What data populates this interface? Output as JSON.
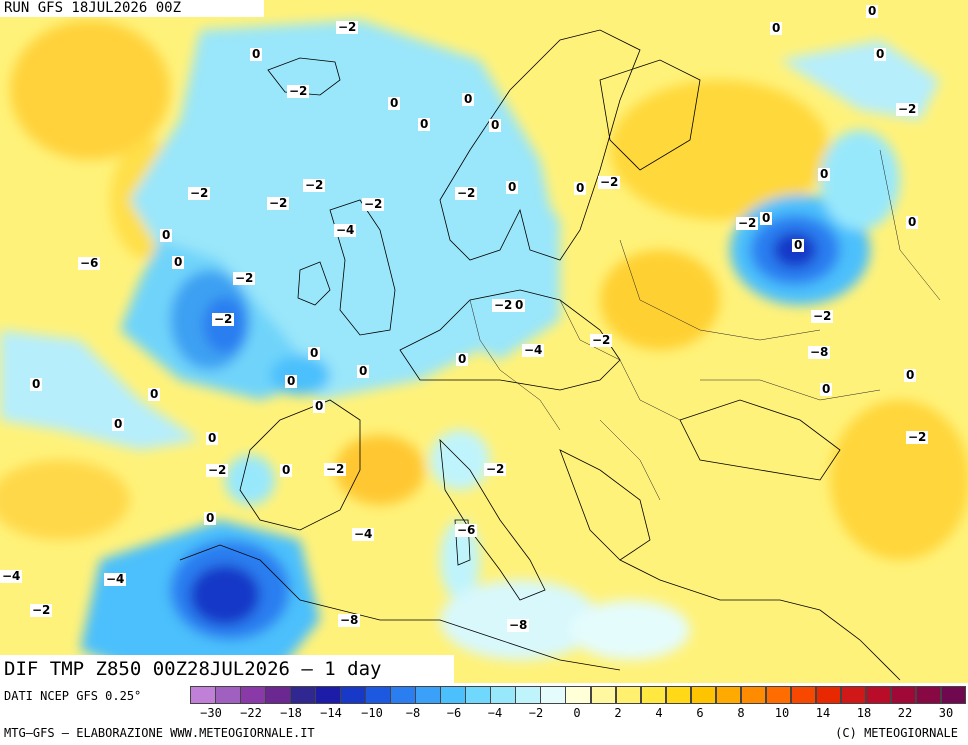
{
  "header": {
    "run_label": "RUN GFS 18JUL2026 00Z"
  },
  "map": {
    "caption": "DIF TMP Z850 00Z28JUL2026 — 1 day",
    "labels": [
      {
        "text": "−2",
        "at": "north atlantic near greenland"
      },
      {
        "text": "0",
        "at": "norwegian sea"
      },
      {
        "text": "−2",
        "at": "iceland"
      },
      {
        "text": "0",
        "at": "north of scandinavia"
      },
      {
        "text": "0",
        "at": "norway coast"
      },
      {
        "text": "0",
        "at": "barents sea"
      },
      {
        "text": "−2",
        "at": "kara sea"
      },
      {
        "text": "0",
        "at": "northern russia"
      },
      {
        "text": "0",
        "at": "arctic east"
      },
      {
        "text": "0",
        "at": "atlantic northwest"
      },
      {
        "text": "0",
        "at": "faroe islands"
      },
      {
        "text": "−2",
        "at": "north sea"
      },
      {
        "text": "−2",
        "at": "scotland"
      },
      {
        "text": "−2",
        "at": "southern norway"
      },
      {
        "text": "−2",
        "at": "atlantic west"
      },
      {
        "text": "−4",
        "at": "atlantic low"
      },
      {
        "text": "0",
        "at": "atlantic far west"
      },
      {
        "text": "0",
        "at": "ireland offshore"
      },
      {
        "text": "−6",
        "at": "atlantic low core"
      },
      {
        "text": "−2",
        "at": "england"
      },
      {
        "text": "−2",
        "at": "english channel"
      },
      {
        "text": "−2",
        "at": "atlantic southwest"
      },
      {
        "text": "0",
        "at": "azores"
      },
      {
        "text": "−4",
        "at": "bay of biscay"
      },
      {
        "text": "−2",
        "at": "biscay south"
      },
      {
        "text": "0",
        "at": "benelux"
      },
      {
        "text": "0",
        "at": "germany"
      },
      {
        "text": "−2",
        "at": "denmark"
      },
      {
        "text": "−2",
        "at": "baltic sea"
      },
      {
        "text": "−2",
        "at": "poland"
      },
      {
        "text": "0",
        "at": "belarus"
      },
      {
        "text": "0",
        "at": "sweden"
      },
      {
        "text": "0",
        "at": "finland"
      },
      {
        "text": "0",
        "at": "russia west"
      },
      {
        "text": "−2",
        "at": "russia cold pool"
      },
      {
        "text": "−8",
        "at": "russia cold core"
      },
      {
        "text": "0",
        "at": "russia east"
      },
      {
        "text": "−2",
        "at": "southern russia"
      },
      {
        "text": "0",
        "at": "ukraine east"
      },
      {
        "text": "0",
        "at": "kazakhstan"
      },
      {
        "text": "0",
        "at": "caucasus"
      },
      {
        "text": "0",
        "at": "portugal offshore"
      },
      {
        "text": "0",
        "at": "spain north"
      },
      {
        "text": "−2",
        "at": "spain northeast"
      },
      {
        "text": "0",
        "at": "france south"
      },
      {
        "text": "0",
        "at": "italy north"
      },
      {
        "text": "0",
        "at": "sardinia"
      },
      {
        "text": "0",
        "at": "algeria coast"
      },
      {
        "text": "0",
        "at": "tunisia"
      },
      {
        "text": "0",
        "at": "atlantic morocco"
      },
      {
        "text": "−2",
        "at": "western edge"
      },
      {
        "text": "−2",
        "at": "gibraltar"
      },
      {
        "text": "−4",
        "at": "andalusia"
      },
      {
        "text": "−6",
        "at": "morocco north"
      },
      {
        "text": "−8",
        "at": "morocco"
      },
      {
        "text": "−8",
        "at": "atlas"
      },
      {
        "text": "−4",
        "at": "algeria west"
      },
      {
        "text": "−4",
        "at": "atlantic canary"
      },
      {
        "text": "−2",
        "at": "sahara north"
      },
      {
        "text": "0",
        "at": "egypt"
      }
    ]
  },
  "legend": {
    "source": "DATI NCEP GFS 0.25°",
    "footer_left": "MTG—GFS — ELABORAZIONE WWW.METEOGIORNALE.IT",
    "footer_right": "(C) METEOGIORNALE",
    "tick_labels": [
      "−30",
      "−22",
      "−18",
      "−14",
      "−10",
      "−8",
      "−6",
      "−4",
      "−2",
      "0",
      "2",
      "4",
      "6",
      "8",
      "10",
      "14",
      "18",
      "22",
      "30"
    ],
    "colors": [
      "#c080d8",
      "#a060c0",
      "#8a3aa8",
      "#6a2890",
      "#302890",
      "#1c1ca8",
      "#1838c8",
      "#1c58e0",
      "#2a7ef0",
      "#3aa0f8",
      "#4cc0fc",
      "#70d8fc",
      "#98e8fc",
      "#c0f4fc",
      "#e4fcfc",
      "#ffffd8",
      "#fff8a0",
      "#fff070",
      "#ffe840",
      "#ffd818",
      "#ffc400",
      "#ffaa00",
      "#ff8c00",
      "#ff6c00",
      "#f84800",
      "#e82800",
      "#d01818",
      "#b80c28",
      "#a00838",
      "#880844",
      "#700850"
    ]
  }
}
